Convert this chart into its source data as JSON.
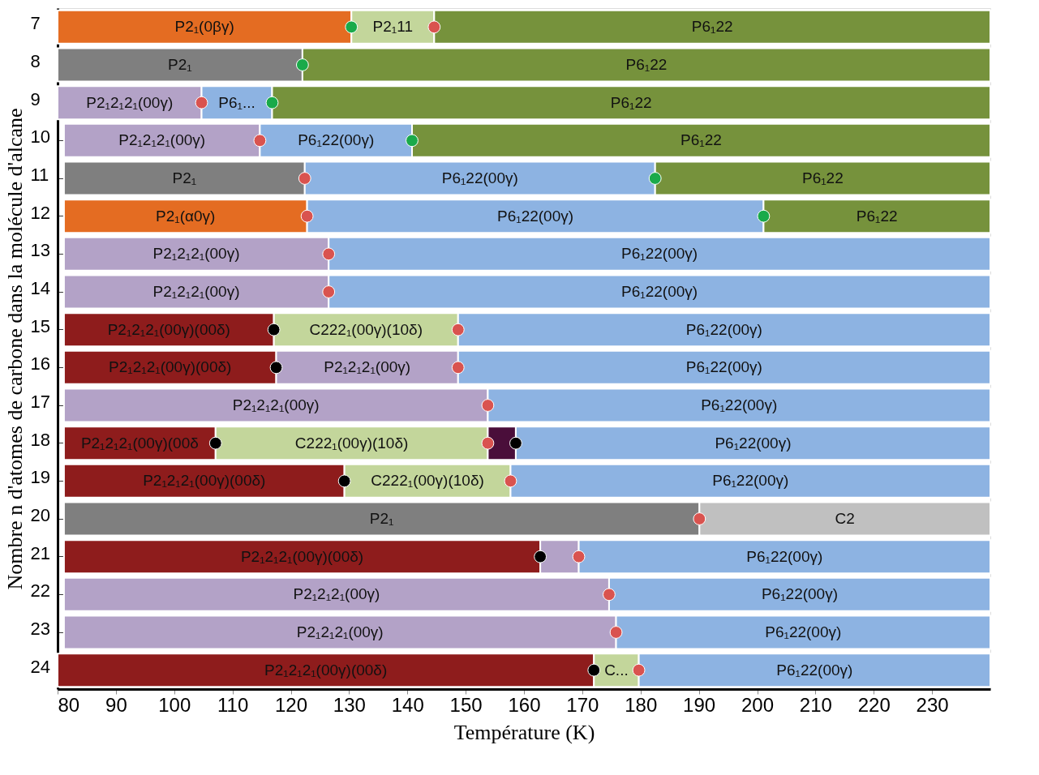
{
  "chart_data": {
    "type": "bar",
    "orientation": "horizontal",
    "xlabel": "Température (K)",
    "ylabel": "Nombre n d'atomes de carbone dans la molécule d'alcane",
    "categories": [
      "7",
      "8",
      "9",
      "10",
      "11",
      "12",
      "13",
      "14",
      "15",
      "16",
      "17",
      "18",
      "19",
      "20",
      "21",
      "22",
      "23",
      "24"
    ],
    "xlim": [
      80,
      240
    ],
    "xticks": [
      80,
      90,
      100,
      110,
      120,
      130,
      140,
      150,
      160,
      170,
      180,
      190,
      200,
      210,
      220,
      230
    ],
    "grid": false,
    "series": [
      {
        "base": [
          80,
          80,
          80,
          81.1,
          81.1,
          81.1,
          81.1,
          81.1,
          81.1,
          81.1,
          81.1,
          81.1,
          81.1,
          81.1,
          81.1,
          81.1,
          81.1,
          80
        ],
        "values": [
          50.4,
          42.0,
          24.7,
          33.6,
          41.3,
          41.7,
          45.4,
          45.4,
          36.0,
          36.4,
          72.7,
          26.0,
          48.1,
          109.0,
          81.7,
          93.5,
          94.7,
          92.0
        ],
        "colors": [
          "#e46c22",
          "#7f7f7f",
          "#b3a2c7",
          "#b3a2c7",
          "#7f7f7f",
          "#e46c22",
          "#b3a2c7",
          "#b3a2c7",
          "#8e1c1c",
          "#8e1c1c",
          "#b3a2c7",
          "#8e1c1c",
          "#8e1c1c",
          "#7f7f7f",
          "#8e1c1c",
          "#b3a2c7",
          "#b3a2c7",
          "#8e1c1c"
        ],
        "value_labels": [
          "P2₁(0βγ)",
          "P2₁",
          "P2₁2₁2₁(00γ)",
          "P2₁2₁2₁(00γ)",
          "P2₁",
          "P2₁(α0γ)",
          "P2₁2₁2₁(00γ)",
          "P2₁2₁2₁(00γ)",
          "P2₁2₁2₁(00γ)(00δ)",
          "P2₁2₁2₁(00γ)(00δ)",
          "P2₁2₁2₁(00γ)",
          "P2₁2₁2₁(00γ)(00δ",
          "P2₁2₁2₁(00γ)(00δ)",
          "P2₁",
          "P2₁2₁2₁(00γ)(00δ)",
          "P2₁2₁2₁(00γ)",
          "P2₁2₁2₁(00γ)",
          "P2₁2₁2₁(00γ)(00δ)"
        ]
      },
      {
        "base": [
          130.4,
          122.0,
          104.7,
          114.7,
          122.4,
          122.8,
          126.5,
          126.5,
          117.1,
          117.5,
          153.8,
          107.1,
          129.2,
          190.1,
          162.8,
          174.6,
          175.8,
          172.0
        ],
        "values": [
          14.2,
          118.0,
          12.1,
          26.1,
          60.1,
          78.3,
          113.5,
          113.5,
          31.6,
          31.2,
          86.2,
          46.7,
          28.5,
          49.9,
          6.6,
          65.4,
          64.2,
          7.7
        ],
        "colors": [
          "#c3d69b",
          "#76923c",
          "#8db3e2",
          "#8db3e2",
          "#8db3e2",
          "#8db3e2",
          "#8db3e2",
          "#8db3e2",
          "#c3d69b",
          "#b3a2c7",
          "#8db3e2",
          "#c3d69b",
          "#c3d69b",
          "#c0c0c0",
          "#b3a2c7",
          "#8db3e2",
          "#8db3e2",
          "#c3d69b"
        ],
        "value_labels": [
          "P2₁11",
          "P6₁22",
          "P6₁...",
          "P6₁22(00γ)",
          "P6₁22(00γ)",
          "P6₁22(00γ)",
          "P6₁22(00γ)",
          "P6₁22(00γ)",
          "C222₁(00γ)(10δ)",
          "P2₁2₁2₁(00γ)",
          "P6₁22(00γ)",
          "C222₁(00γ)(10δ)",
          "C222₁(00γ)(10δ)",
          "C2",
          null,
          "P6₁22(00γ)",
          "P6₁22(00γ)",
          "C..."
        ]
      },
      {
        "base": [
          144.6,
          null,
          116.8,
          140.8,
          182.5,
          201.1,
          null,
          null,
          148.7,
          148.7,
          null,
          153.8,
          157.7,
          null,
          169.4,
          null,
          null,
          179.7
        ],
        "values": [
          95.4,
          null,
          123.2,
          99.2,
          57.5,
          38.9,
          null,
          null,
          91.3,
          91.3,
          null,
          4.8,
          82.3,
          null,
          70.6,
          null,
          null,
          60.3
        ],
        "colors": [
          "#76923c",
          null,
          "#76923c",
          "#76923c",
          "#76923c",
          "#76923c",
          null,
          null,
          "#8db3e2",
          "#8db3e2",
          null,
          "#4a0e3a",
          "#8db3e2",
          null,
          "#8db3e2",
          null,
          null,
          "#8db3e2"
        ],
        "value_labels": [
          "P6₁22",
          null,
          "P6₁22",
          "P6₁22",
          "P6₁22",
          "P6₁22",
          null,
          null,
          "P6₁22(00γ)",
          "P6₁22(00γ)",
          null,
          null,
          "P6₁22(00γ)",
          null,
          "P6₁22(00γ)",
          null,
          null,
          "P6₁22(00γ)"
        ]
      },
      {
        "base": [
          null,
          null,
          null,
          null,
          null,
          null,
          null,
          null,
          null,
          null,
          null,
          158.6,
          null,
          null,
          null,
          null,
          null,
          null
        ],
        "values": [
          null,
          null,
          null,
          null,
          null,
          null,
          null,
          null,
          null,
          null,
          null,
          81.4,
          null,
          null,
          null,
          null,
          null,
          null
        ],
        "colors": [
          null,
          null,
          null,
          null,
          null,
          null,
          null,
          null,
          null,
          null,
          null,
          "#8db3e2",
          null,
          null,
          null,
          null,
          null,
          null
        ],
        "value_labels": [
          null,
          null,
          null,
          null,
          null,
          null,
          null,
          null,
          null,
          null,
          null,
          "P6₁22(00γ)",
          null,
          null,
          null,
          null,
          null,
          null
        ]
      },
      {
        "type": "scatter",
        "color": "#d9534f",
        "x": [
          "7",
          "9",
          "10",
          "11",
          "12",
          "13",
          "14",
          "15",
          "16",
          "17",
          "18",
          "19",
          "20",
          "21",
          "22",
          "23",
          "24"
        ],
        "values": [
          144.6,
          104.7,
          114.7,
          122.4,
          122.8,
          126.5,
          126.5,
          148.7,
          148.7,
          153.8,
          153.8,
          157.7,
          190.1,
          169.4,
          174.6,
          175.8,
          179.7
        ]
      },
      {
        "type": "scatter",
        "color": "#1aaa4a",
        "x": [
          "7",
          "8",
          "9",
          "10",
          "11",
          "12"
        ],
        "values": [
          130.4,
          122.0,
          116.8,
          140.8,
          182.5,
          201.1
        ]
      },
      {
        "type": "scatter",
        "color": "#000000",
        "x": [
          "15",
          "16",
          "18",
          "18",
          "19",
          "21",
          "24"
        ],
        "values": [
          117.1,
          117.5,
          107.1,
          158.6,
          129.2,
          162.8,
          172.0
        ]
      }
    ]
  }
}
